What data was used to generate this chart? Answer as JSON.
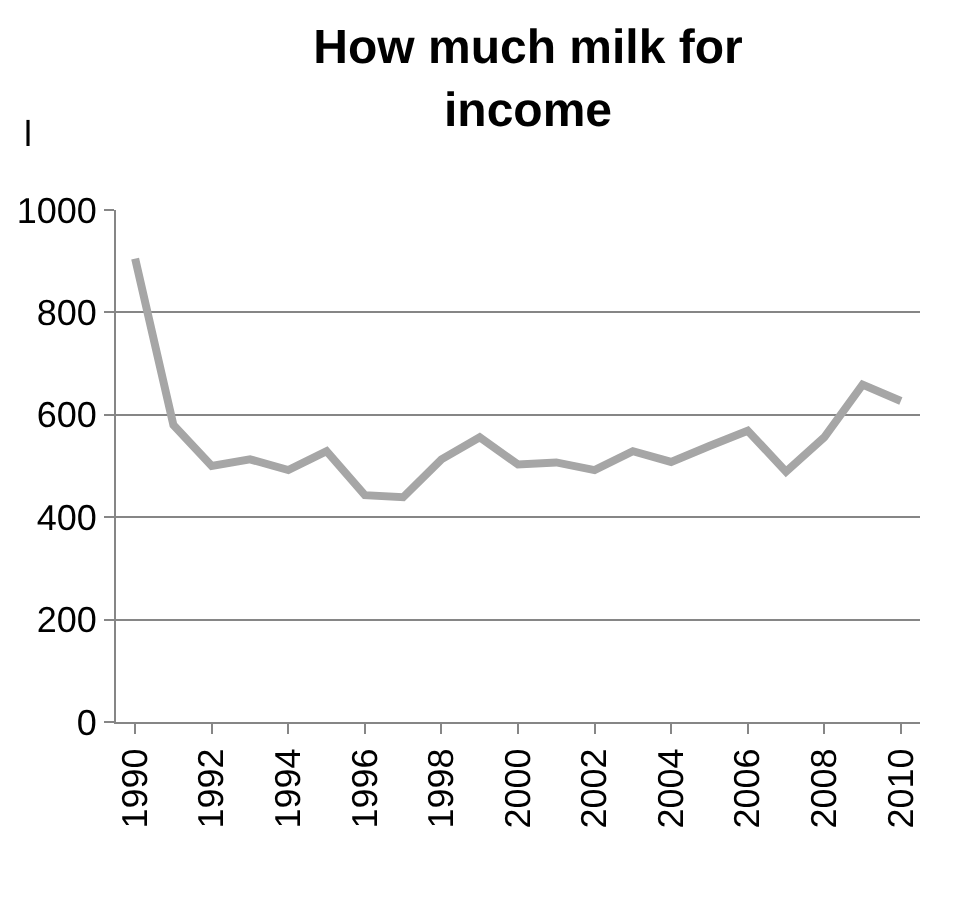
{
  "chart_data": {
    "type": "line",
    "title": "How much milk for income",
    "ylabel": "l",
    "x": [
      1990,
      1991,
      1992,
      1993,
      1994,
      1995,
      1996,
      1997,
      1998,
      1999,
      2000,
      2001,
      2002,
      2003,
      2004,
      2005,
      2006,
      2007,
      2008,
      2009,
      2010
    ],
    "series": [
      {
        "color": "#a6a6a6",
        "values": [
          905,
          580,
          500,
          513,
          492,
          529,
          443,
          439,
          513,
          556,
          503,
          507,
          492,
          529,
          508,
          539,
          569,
          489,
          556,
          659,
          627
        ]
      }
    ],
    "xlim": [
      1989.5,
      2010.5
    ],
    "xticks": [
      1990,
      1992,
      1994,
      1996,
      1998,
      2000,
      2002,
      2004,
      2006,
      2008,
      2010
    ],
    "ylim": [
      0,
      1000
    ],
    "yticks": [
      0,
      200,
      400,
      600,
      800,
      1000
    ],
    "grid": "y",
    "marker": "none",
    "line_style": "solid"
  }
}
